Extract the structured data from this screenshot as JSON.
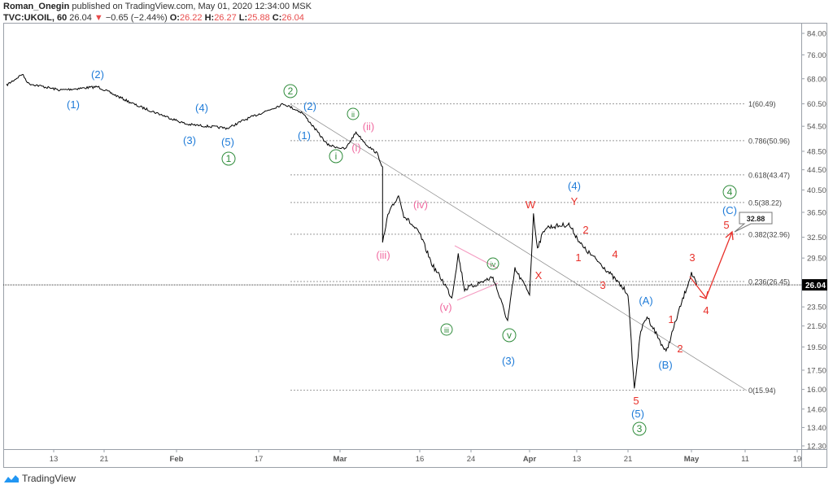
{
  "header": {
    "author": "Roman_Onegin",
    "published": "published on TradingView.com, May 01, 2020 12:34:00 MSK",
    "symbol": "TVC:UKOIL, 60",
    "last": "26.04",
    "change": "−0.65 (−2.44%)",
    "o_label": "O:",
    "o": "26.22",
    "h_label": "H:",
    "h": "26.27",
    "l_label": "L:",
    "l": "25.88",
    "c_label": "C:",
    "c": "26.04"
  },
  "footer": {
    "brand": "TradingView"
  },
  "colors": {
    "up": "#e84b4b",
    "blue": "#1e7bd8",
    "green": "#2e8b3a",
    "pink": "#f06aa0",
    "red": "#e8302a",
    "price": "#000000"
  },
  "chart_data": {
    "type": "line",
    "scale": "log",
    "ylim": [
      12.3,
      84.0
    ],
    "y_ticks": [
      "84.00",
      "76.00",
      "68.00",
      "60.50",
      "54.50",
      "48.50",
      "44.50",
      "40.50",
      "36.50",
      "32.50",
      "29.50",
      "23.50",
      "21.50",
      "19.50",
      "17.50",
      "16.00",
      "14.60",
      "13.40",
      "12.30"
    ],
    "x_ticks": [
      "13",
      "21",
      "Feb",
      "17",
      "Mar",
      "16",
      "24",
      "Apr",
      "13",
      "21",
      "May",
      "11",
      "19"
    ],
    "last_price_label": "26.04",
    "series": [
      {
        "points": [
          [
            "2020-01-06",
            66
          ],
          [
            "2020-01-07",
            68
          ],
          [
            "2020-01-08",
            69.5
          ],
          [
            "2020-01-09",
            66.5
          ],
          [
            "2020-01-14",
            64.5
          ],
          [
            "2020-01-20",
            65.5
          ],
          [
            "2020-01-26",
            60
          ],
          [
            "2020-02-03",
            55
          ],
          [
            "2020-02-11",
            54
          ],
          [
            "2020-02-14",
            56
          ],
          [
            "2020-02-21",
            60.5
          ],
          [
            "2020-02-24",
            58
          ],
          [
            "2020-02-28",
            50
          ],
          [
            "2020-03-02",
            49
          ],
          [
            "2020-03-04",
            53
          ],
          [
            "2020-03-05",
            51.5
          ],
          [
            "2020-03-06",
            50
          ],
          [
            "2020-03-08",
            48
          ],
          [
            "2020-03-09",
            45
          ],
          [
            "2020-03-09",
            31.5
          ],
          [
            "2020-03-10",
            36
          ],
          [
            "2020-03-12",
            39.5
          ],
          [
            "2020-03-13",
            36
          ],
          [
            "2020-03-16",
            33
          ],
          [
            "2020-03-18",
            28.5
          ],
          [
            "2020-03-20",
            26
          ],
          [
            "2020-03-21",
            24.5
          ],
          [
            "2020-03-22",
            30
          ],
          [
            "2020-03-23",
            25.5
          ],
          [
            "2020-03-27",
            27
          ],
          [
            "2020-03-29",
            22
          ],
          [
            "2020-03-30",
            28
          ],
          [
            "2020-04-01",
            25
          ],
          [
            "2020-04-02",
            36
          ],
          [
            "2020-04-03",
            31
          ],
          [
            "2020-04-05",
            34
          ],
          [
            "2020-04-11",
            34.5
          ],
          [
            "2020-04-14",
            31
          ],
          [
            "2020-04-17",
            28.5
          ],
          [
            "2020-04-21",
            25
          ],
          [
            "2020-04-22",
            16
          ],
          [
            "2020-04-23",
            21
          ],
          [
            "2020-04-24",
            22.5
          ],
          [
            "2020-04-27",
            19
          ],
          [
            "2020-04-29",
            23
          ],
          [
            "2020-05-01",
            27.5
          ],
          [
            "2020-05-02",
            26
          ]
        ]
      }
    ],
    "fibonacci": [
      {
        "label": "1(60.49)",
        "value": 60.49
      },
      {
        "label": "0.786(50.96)",
        "value": 50.96
      },
      {
        "label": "0.618(43.47)",
        "value": 43.47
      },
      {
        "label": "0.5(38.22)",
        "value": 38.22
      },
      {
        "label": "0.382(32.96)",
        "value": 32.96
      },
      {
        "label": "0.236(26.45)",
        "value": 26.45
      },
      {
        "label": "0(15.94)",
        "value": 15.94
      }
    ],
    "target_callout": "32.88",
    "wave_labels": [
      {
        "text": "(2)",
        "color": "blue"
      },
      {
        "text": "(1)",
        "color": "blue"
      },
      {
        "text": "(4)",
        "color": "blue"
      },
      {
        "text": "(3)",
        "color": "blue"
      },
      {
        "text": "(5)",
        "color": "blue"
      },
      {
        "text": "1",
        "color": "green",
        "circle": true
      },
      {
        "text": "2",
        "color": "green",
        "circle": true
      },
      {
        "text": "(2)",
        "color": "blue"
      },
      {
        "text": "(1)",
        "color": "blue"
      },
      {
        "text": "ii",
        "color": "green",
        "circle": true
      },
      {
        "text": "(ii)",
        "color": "pink"
      },
      {
        "text": "(i)",
        "color": "pink"
      },
      {
        "text": "i",
        "color": "green",
        "circle": true
      },
      {
        "text": "(iv)",
        "color": "pink"
      },
      {
        "text": "(iii)",
        "color": "pink"
      },
      {
        "text": "(v)",
        "color": "pink"
      },
      {
        "text": "iii",
        "color": "green",
        "circle": true
      },
      {
        "text": "iv",
        "color": "green",
        "circle": true
      },
      {
        "text": "v",
        "color": "green",
        "circle": true
      },
      {
        "text": "(3)",
        "color": "blue"
      },
      {
        "text": "W",
        "color": "red"
      },
      {
        "text": "(4)",
        "color": "blue"
      },
      {
        "text": "Y",
        "color": "red"
      },
      {
        "text": "X",
        "color": "red"
      },
      {
        "text": "2",
        "color": "red"
      },
      {
        "text": "1",
        "color": "red"
      },
      {
        "text": "4",
        "color": "red"
      },
      {
        "text": "3",
        "color": "red"
      },
      {
        "text": "(A)",
        "color": "blue"
      },
      {
        "text": "1",
        "color": "red"
      },
      {
        "text": "2",
        "color": "red"
      },
      {
        "text": "(B)",
        "color": "blue"
      },
      {
        "text": "5",
        "color": "red"
      },
      {
        "text": "(5)",
        "color": "blue"
      },
      {
        "text": "3",
        "color": "green",
        "circle": true
      },
      {
        "text": "3",
        "color": "red"
      },
      {
        "text": "4",
        "color": "red"
      },
      {
        "text": "4",
        "color": "green",
        "circle": true
      },
      {
        "text": "(C)",
        "color": "blue"
      },
      {
        "text": "5",
        "color": "red"
      }
    ]
  }
}
